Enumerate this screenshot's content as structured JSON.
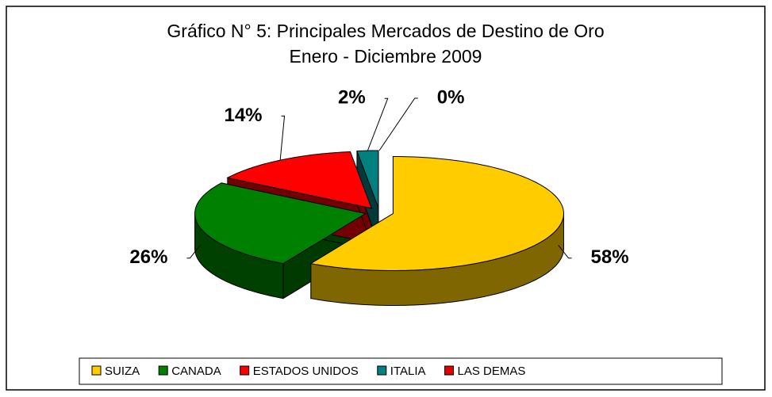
{
  "chart_data": {
    "type": "pie3d",
    "title": "Gráfico N° 5: Principales Mercados de Destino de Oro",
    "subtitle": "Enero - Diciembre 2009",
    "categories": [
      "SUIZA",
      "CANADA",
      "ESTADOS UNIDOS",
      "ITALIA",
      "LAS DEMAS"
    ],
    "values": [
      58,
      26,
      14,
      2,
      0
    ],
    "value_labels": [
      "58%",
      "26%",
      "14%",
      "2%",
      "0%"
    ],
    "colors": [
      "#ffcc00",
      "#008000",
      "#ff0000",
      "#008080",
      "#e00000"
    ],
    "legend": "bottom"
  }
}
